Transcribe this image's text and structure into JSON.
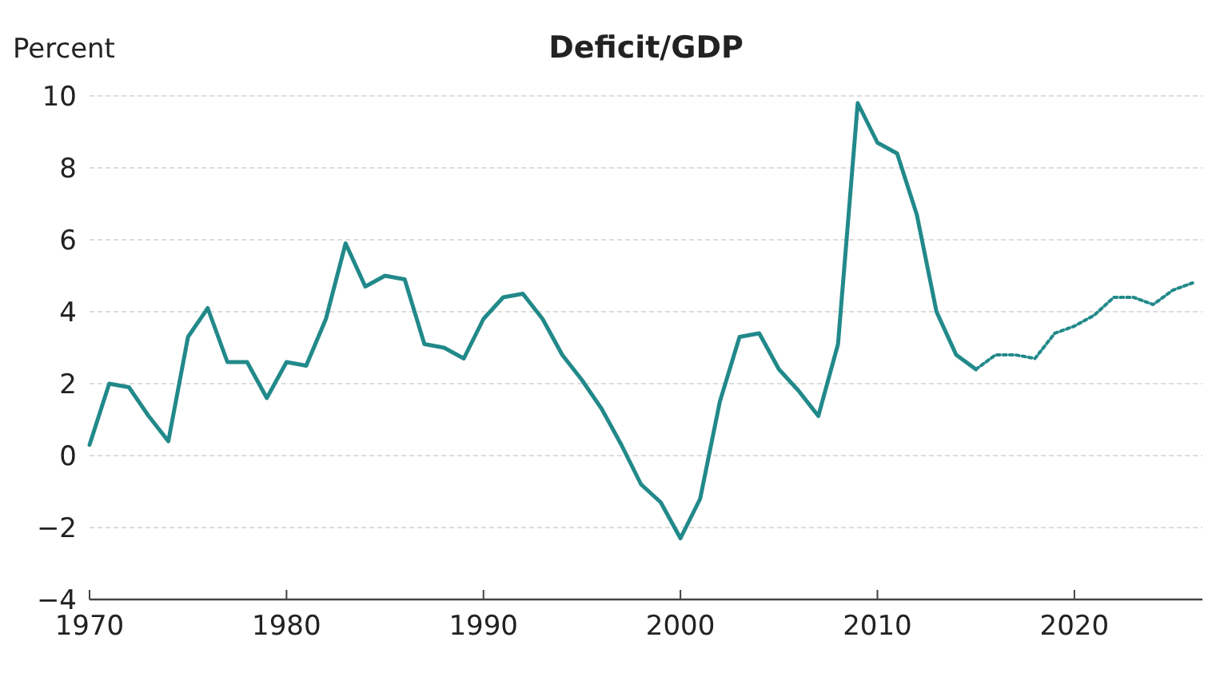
{
  "chart_data": {
    "type": "line",
    "title": "Deficit/GDP",
    "ylabel": "Percent",
    "xlim": [
      1970,
      2026.5
    ],
    "xticks": [
      1970,
      1980,
      1990,
      2000,
      2010,
      2020
    ],
    "ylim": [
      -4,
      10
    ],
    "yticks": [
      -4,
      -2,
      0,
      2,
      4,
      6,
      8,
      10
    ],
    "grid": "y",
    "series": [
      {
        "color": "#22898a",
        "line_style": "solid",
        "x": [
          1970,
          1971,
          1972,
          1973,
          1974,
          1975,
          1976,
          1977,
          1978,
          1979,
          1980,
          1981,
          1982,
          1983,
          1984,
          1985,
          1986,
          1987,
          1988,
          1989,
          1990,
          1991,
          1992,
          1993,
          1994,
          1995,
          1996,
          1997,
          1998,
          1999,
          2000,
          2001,
          2002,
          2003,
          2004,
          2005,
          2006,
          2007,
          2008,
          2009,
          2010,
          2011,
          2012,
          2013,
          2014,
          2015
        ],
        "values": [
          0.3,
          2.0,
          1.9,
          1.1,
          0.4,
          3.3,
          4.1,
          2.6,
          2.6,
          1.6,
          2.6,
          2.5,
          3.8,
          5.9,
          4.7,
          5.0,
          4.9,
          3.1,
          3.0,
          2.7,
          3.8,
          4.4,
          4.5,
          3.8,
          2.8,
          2.1,
          1.3,
          0.3,
          -0.8,
          -1.3,
          -2.3,
          -1.2,
          1.5,
          3.3,
          3.4,
          2.4,
          1.8,
          1.1,
          3.1,
          9.8,
          8.7,
          8.4,
          6.7,
          4.0,
          2.8,
          2.4
        ]
      },
      {
        "color": "#22898a",
        "line_style": "dotted",
        "x": [
          2015,
          2016,
          2017,
          2018,
          2019,
          2020,
          2021,
          2022,
          2023,
          2024,
          2025,
          2026
        ],
        "values": [
          2.4,
          2.8,
          2.8,
          2.7,
          3.4,
          3.6,
          3.9,
          4.4,
          4.4,
          4.2,
          4.6,
          4.8
        ]
      }
    ]
  }
}
